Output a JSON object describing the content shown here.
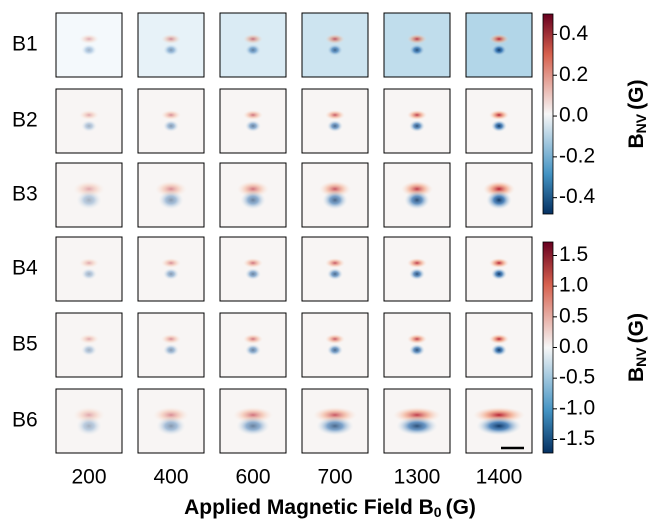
{
  "chart_data": {
    "type": "heatmap-grid",
    "rows": [
      "B1",
      "B2",
      "B3",
      "B4",
      "B5",
      "B6"
    ],
    "columns": [
      "200",
      "400",
      "600",
      "700",
      "1300",
      "1400"
    ],
    "xlabel": {
      "main": "Applied Magnetic Field B",
      "sub": "0",
      "unit": "(G)"
    },
    "colorbars": [
      {
        "label": {
          "main": "B",
          "sub": "NV",
          "unit": "(G)"
        },
        "ylim": [
          -0.48,
          0.5
        ],
        "yticks": [
          0.4,
          0.2,
          {
            "value": 0,
            "label": "0.0"
          },
          -0.2,
          -0.4
        ]
      },
      {
        "label": {
          "main": "B",
          "sub": "NV",
          "unit": "(G)"
        },
        "ylim": [
          -1.72,
          1.72
        ],
        "yticks": [
          1.5,
          {
            "value": 1,
            "label": "1.0"
          },
          0.5,
          {
            "value": 0,
            "label": "0.0"
          },
          -0.5,
          {
            "value": -1,
            "label": "-1.0"
          },
          -1.5
        ]
      }
    ]
  }
}
